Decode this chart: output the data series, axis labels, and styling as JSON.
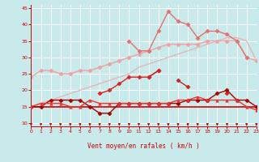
{
  "x": [
    0,
    1,
    2,
    3,
    4,
    5,
    6,
    7,
    8,
    9,
    10,
    11,
    12,
    13,
    14,
    15,
    16,
    17,
    18,
    19,
    20,
    21,
    22,
    23
  ],
  "series": [
    {
      "name": "line1_pink_smooth_top",
      "color": "#f0a0a0",
      "linewidth": 1.0,
      "marker": "D",
      "markersize": 2.5,
      "zorder": 2,
      "y": [
        24,
        26,
        26,
        25,
        25,
        26,
        26,
        27,
        28,
        29,
        30,
        31,
        32,
        33,
        34,
        34,
        34,
        34,
        35,
        35,
        35,
        35,
        30,
        29
      ]
    },
    {
      "name": "line2_salmon_jagged",
      "color": "#e87070",
      "linewidth": 1.0,
      "marker": "D",
      "markersize": 2.5,
      "zorder": 3,
      "y": [
        null,
        null,
        null,
        null,
        null,
        null,
        null,
        null,
        null,
        null,
        35,
        32,
        32,
        38,
        44,
        41,
        40,
        36,
        38,
        38,
        37,
        35,
        30,
        null
      ]
    },
    {
      "name": "line3_straight_rising",
      "color": "#e0b8b8",
      "linewidth": 1.0,
      "marker": null,
      "zorder": 2,
      "y": [
        15,
        16,
        17,
        18,
        19,
        20,
        21,
        22,
        23,
        24,
        25,
        27,
        28,
        29,
        30,
        31,
        32,
        33,
        34,
        35,
        36,
        36,
        35,
        29
      ]
    },
    {
      "name": "line4_red_upper_jagged",
      "color": "#cc2222",
      "linewidth": 1.0,
      "marker": "D",
      "markersize": 2.5,
      "zorder": 4,
      "y": [
        null,
        null,
        null,
        null,
        null,
        null,
        null,
        null,
        null,
        null,
        null,
        null,
        24,
        26,
        null,
        23,
        21,
        null,
        null,
        null,
        19,
        null,
        null,
        null
      ]
    },
    {
      "name": "line5_red_rising_middle",
      "color": "#dd2222",
      "linewidth": 1.0,
      "marker": "D",
      "markersize": 2.5,
      "zorder": 4,
      "y": [
        null,
        null,
        null,
        null,
        null,
        null,
        null,
        19,
        20,
        22,
        24,
        24,
        24,
        26,
        null,
        null,
        null,
        null,
        null,
        null,
        null,
        null,
        null,
        null
      ]
    },
    {
      "name": "line6_flat_red",
      "color": "#cc0000",
      "linewidth": 1.2,
      "marker": null,
      "zorder": 3,
      "y": [
        15,
        15,
        15,
        15,
        15,
        15,
        15,
        15,
        15,
        15,
        15,
        15,
        15,
        15,
        15,
        15,
        15,
        15,
        15,
        15,
        15,
        15,
        15,
        15
      ]
    },
    {
      "name": "line7_red_low_jagged",
      "color": "#aa0000",
      "linewidth": 1.0,
      "marker": "D",
      "markersize": 2.5,
      "zorder": 4,
      "y": [
        15,
        15,
        17,
        17,
        17,
        17,
        15,
        13,
        13,
        16,
        16,
        16,
        16,
        16,
        16,
        16,
        17,
        17,
        17,
        19,
        20,
        17,
        17,
        15
      ]
    },
    {
      "name": "line8_red_triangle_markers",
      "color": "#ee3333",
      "linewidth": 1.0,
      "marker": "^",
      "markersize": 2.5,
      "zorder": 4,
      "y": [
        15,
        16,
        16,
        16,
        15,
        15,
        17,
        16,
        16,
        16,
        16,
        16,
        16,
        16,
        16,
        17,
        17,
        18,
        17,
        17,
        17,
        17,
        15,
        14
      ]
    }
  ],
  "xlabel": "Vent moyen/en rafales ( km/h )",
  "xlim": [
    0,
    23
  ],
  "ylim": [
    9,
    46
  ],
  "yticks": [
    10,
    15,
    20,
    25,
    30,
    35,
    40,
    45
  ],
  "xticks": [
    0,
    1,
    2,
    3,
    4,
    5,
    6,
    7,
    8,
    9,
    10,
    11,
    12,
    13,
    14,
    15,
    16,
    17,
    18,
    19,
    20,
    21,
    22,
    23
  ],
  "bg_color": "#c8eaea",
  "grid_color": "#ffffff",
  "text_color": "#cc0000",
  "figsize": [
    3.2,
    2.0
  ],
  "dpi": 100
}
